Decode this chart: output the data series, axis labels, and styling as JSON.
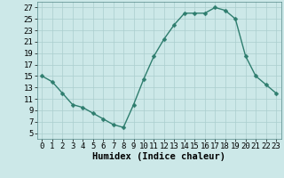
{
  "x": [
    0,
    1,
    2,
    3,
    4,
    5,
    6,
    7,
    8,
    9,
    10,
    11,
    12,
    13,
    14,
    15,
    16,
    17,
    18,
    19,
    20,
    21,
    22,
    23
  ],
  "y": [
    15,
    14,
    12,
    10,
    9.5,
    8.5,
    7.5,
    6.5,
    6,
    10,
    14.5,
    18.5,
    21.5,
    24,
    26,
    26,
    26,
    27,
    26.5,
    25,
    18.5,
    15,
    13.5,
    12
  ],
  "line_color": "#2e7d6e",
  "marker": "D",
  "marker_size": 2.5,
  "bg_color": "#cce8e8",
  "grid_color": "#aacece",
  "xlabel": "Humidex (Indice chaleur)",
  "xlim": [
    -0.5,
    23.5
  ],
  "ylim": [
    4,
    28
  ],
  "yticks": [
    5,
    7,
    9,
    11,
    13,
    15,
    17,
    19,
    21,
    23,
    25,
    27
  ],
  "xticks": [
    0,
    1,
    2,
    3,
    4,
    5,
    6,
    7,
    8,
    9,
    10,
    11,
    12,
    13,
    14,
    15,
    16,
    17,
    18,
    19,
    20,
    21,
    22,
    23
  ],
  "xlabel_fontsize": 7.5,
  "tick_fontsize": 6.5,
  "line_width": 1.0
}
